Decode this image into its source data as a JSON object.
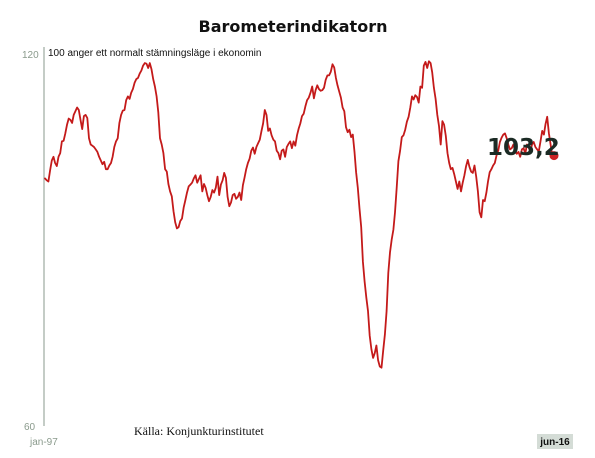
{
  "chart_data": {
    "type": "line",
    "title": "Barometerindikatorn",
    "subtitle": "100 anger ett normalt stämningsläge i ekonomin",
    "source": "Källa: Konjunkturinstitutet",
    "x_start_label": "jan-97",
    "x_end_label": "jun-16",
    "last_value_label": "103,2",
    "ylim": [
      60,
      120
    ],
    "y_tick_labels": [
      "120",
      "60"
    ],
    "grid": false,
    "colors": {
      "line": "#c41a1a",
      "marker": "#cc2222",
      "axis": "#8a9a8c",
      "end_label_bg": "#d4dcd6"
    },
    "series": [
      {
        "values": [
          99.5,
          99.2,
          99.0,
          100.8,
          102.4,
          103.0,
          102.0,
          101.5,
          103.0,
          103.6,
          105.5,
          105.6,
          106.8,
          108.2,
          109.2,
          109.0,
          108.5,
          109.8,
          110.4,
          111.0,
          110.6,
          109.0,
          107.5,
          109.6,
          109.8,
          109.3,
          106.0,
          105.0,
          104.8,
          104.6,
          104.2,
          103.8,
          103.0,
          102.4,
          101.8,
          102.2,
          101.0,
          101.0,
          101.6,
          102.0,
          103.0,
          104.6,
          105.5,
          106.0,
          108.5,
          109.8,
          110.5,
          110.6,
          112.2,
          112.8,
          112.4,
          113.4,
          114.0,
          115.0,
          115.6,
          115.8,
          116.5,
          117.0,
          117.8,
          118.2,
          118.1,
          117.4,
          118.2,
          117.2,
          115.6,
          114.4,
          112.8,
          110.2,
          106.0,
          105.0,
          103.6,
          101.0,
          100.6,
          98.6,
          97.4,
          96.6,
          94.2,
          92.4,
          91.4,
          91.6,
          92.6,
          93.0,
          94.8,
          96.0,
          97.2,
          98.2,
          98.5,
          98.8,
          99.5,
          100.0,
          98.8,
          99.4,
          100.0,
          97.4,
          98.6,
          98.0,
          96.8,
          95.8,
          96.5,
          97.6,
          97.2,
          98.0,
          99.8,
          96.8,
          98.5,
          99.2,
          100.4,
          99.6,
          96.5,
          95.0,
          95.6,
          96.8,
          97.0,
          96.2,
          96.5,
          97.2,
          96.0,
          98.4,
          99.6,
          101.0,
          102.0,
          102.7,
          104.0,
          104.5,
          103.5,
          104.6,
          105.2,
          105.8,
          107.2,
          108.4,
          110.6,
          109.8,
          107.2,
          107.6,
          106.5,
          105.8,
          105.5,
          104.0,
          103.6,
          102.6,
          104.0,
          104.2,
          103.0,
          104.6,
          105.1,
          105.5,
          104.4,
          105.5,
          104.8,
          106.5,
          107.6,
          108.4,
          109.6,
          110.0,
          111.2,
          112.2,
          112.6,
          113.4,
          114.4,
          112.5,
          113.8,
          114.6,
          114.0,
          113.7,
          113.8,
          114.2,
          115.5,
          116.2,
          116.2,
          116.8,
          118.0,
          117.5,
          115.8,
          114.6,
          113.6,
          112.6,
          111.0,
          110.4,
          107.8,
          107.0,
          107.4,
          106.2,
          106.6,
          103.8,
          100.5,
          98.0,
          94.6,
          91.6,
          86.0,
          82.8,
          80.2,
          78.0,
          74.0,
          71.8,
          70.4,
          71.2,
          72.4,
          70.0,
          69.0,
          68.8,
          71.6,
          74.2,
          78.0,
          84.2,
          87.5,
          89.6,
          91.2,
          94.0,
          98.0,
          102.3,
          104.0,
          106.2,
          106.5,
          107.4,
          108.7,
          109.5,
          111.0,
          112.8,
          112.3,
          113.0,
          112.7,
          111.8,
          114.4,
          114.2,
          117.8,
          118.4,
          117.4,
          118.5,
          118.2,
          116.7,
          114.2,
          112.4,
          109.8,
          108.0,
          105.0,
          108.8,
          108.2,
          106.4,
          103.6,
          102.0,
          101.0,
          101.2,
          100.2,
          99.0,
          97.8,
          99.0,
          97.4,
          98.8,
          100.0,
          101.5,
          102.5,
          101.4,
          100.6,
          100.4,
          101.6,
          99.8,
          97.4,
          94.0,
          93.2,
          96.0,
          95.8,
          97.2,
          99.0,
          100.5,
          101.0,
          101.6,
          102.0,
          103.2,
          104.0,
          105.4,
          106.1,
          106.6,
          106.8,
          106.0,
          105.0,
          104.2,
          104.4,
          105.0,
          104.0,
          103.5,
          103.8,
          103.0,
          104.2,
          104.4,
          103.5,
          105.0,
          104.6,
          103.8,
          105.0,
          105.4,
          104.6,
          104.2,
          103.9,
          105.5,
          107.2,
          106.6,
          108.3,
          109.5,
          106.8,
          105.0,
          103.2,
          103.2
        ]
      }
    ]
  }
}
